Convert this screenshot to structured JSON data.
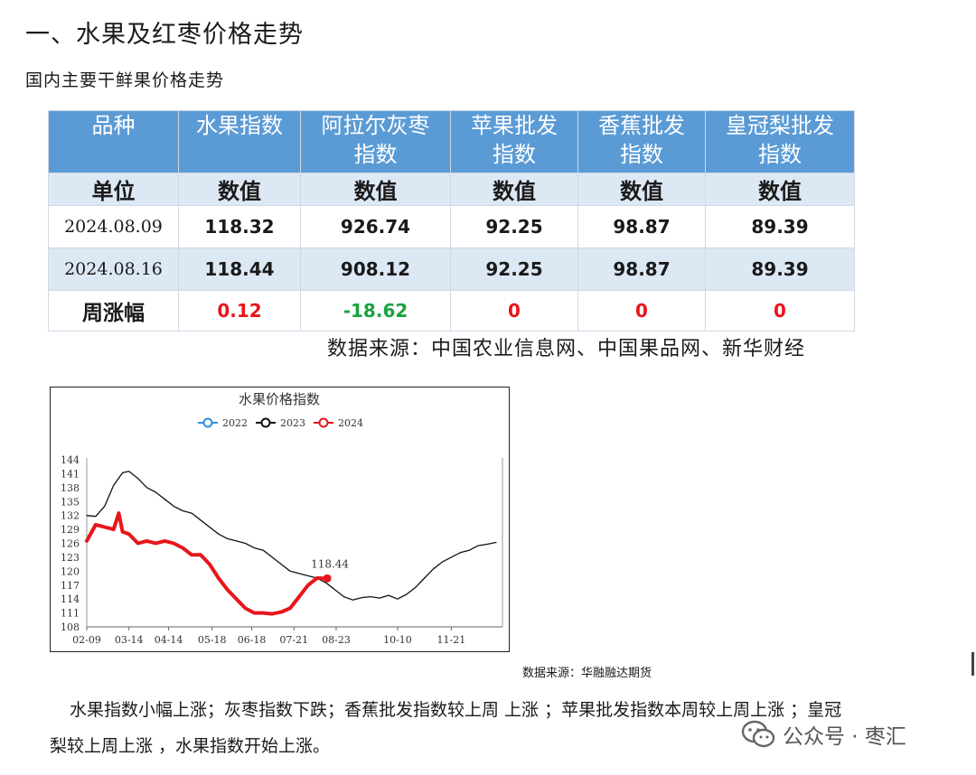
{
  "heading": "一、水果及红枣价格走势",
  "subheading": "国内主要干鲜果价格走势",
  "table": {
    "headers": [
      "品种",
      "水果指数",
      "阿拉尔灰枣指数",
      "苹果批发指数",
      "香蕉批发指数",
      "皇冠梨批发指数"
    ],
    "header_lines": [
      [
        "品种"
      ],
      [
        "水果指数"
      ],
      [
        "阿拉尔灰枣",
        "指数"
      ],
      [
        "苹果批发",
        "指数"
      ],
      [
        "香蕉批发",
        "指数"
      ],
      [
        "皇冠梨批发",
        "指数"
      ]
    ],
    "units": [
      "单位",
      "数值",
      "数值",
      "数值",
      "数值",
      "数值"
    ],
    "rows": [
      [
        "2024.08.09",
        "118.32",
        "926.74",
        "92.25",
        "98.87",
        "89.39"
      ],
      [
        "2024.08.16",
        "118.44",
        "908.12",
        "92.25",
        "98.87",
        "89.39"
      ]
    ],
    "change_label": "周涨幅",
    "changes": [
      "0.12",
      "-18.62",
      "0",
      "0",
      "0"
    ]
  },
  "source1": "数据来源：中国农业信息网、中国果品网、新华财经",
  "chart_data": {
    "type": "line",
    "title": "水果价格指数",
    "legend": [
      "2022",
      "2023",
      "2024"
    ],
    "legend_placement": "top-center",
    "x_ticks": [
      "02-09",
      "03-14",
      "04-14",
      "05-18",
      "06-18",
      "07-21",
      "08-23",
      "10-10",
      "11-21"
    ],
    "y_ticks": [
      108,
      111,
      114,
      117,
      120,
      123,
      126,
      129,
      132,
      135,
      138,
      141,
      144
    ],
    "ylim": [
      108,
      144
    ],
    "annotation": "118.44",
    "series": [
      {
        "name": "2023",
        "color": "#111111",
        "x": [
          "02-09",
          "02-16",
          "02-23",
          "03-02",
          "03-09",
          "03-14",
          "03-21",
          "03-28",
          "04-04",
          "04-11",
          "04-18",
          "04-25",
          "05-02",
          "05-09",
          "05-16",
          "05-23",
          "05-30",
          "06-06",
          "06-13",
          "06-20",
          "06-27",
          "07-04",
          "07-11",
          "07-18",
          "07-25",
          "08-01",
          "08-08",
          "08-15",
          "08-22",
          "08-29",
          "09-05",
          "09-12",
          "09-19",
          "09-26",
          "10-03",
          "10-10",
          "10-17",
          "10-24",
          "10-31",
          "11-07",
          "11-14",
          "11-21",
          "11-28",
          "12-05",
          "12-12",
          "12-19",
          "12-26"
        ],
        "y": [
          132.0,
          131.8,
          134.0,
          138.5,
          141.2,
          141.5,
          140.0,
          138.0,
          137.0,
          135.5,
          134.0,
          133.0,
          132.5,
          131.0,
          129.5,
          128.0,
          127.0,
          126.5,
          126.0,
          125.0,
          124.5,
          123.0,
          121.5,
          120.0,
          119.5,
          119.0,
          118.5,
          117.5,
          116.0,
          114.5,
          113.8,
          114.3,
          114.5,
          114.2,
          114.8,
          114.0,
          115.0,
          116.5,
          118.5,
          120.5,
          122.0,
          123.0,
          124.0,
          124.5,
          125.5,
          125.8,
          126.2
        ]
      },
      {
        "name": "2024",
        "color": "#e8151b",
        "x": [
          "02-09",
          "02-16",
          "02-23",
          "03-02",
          "03-06",
          "03-09",
          "03-14",
          "03-21",
          "03-28",
          "04-04",
          "04-11",
          "04-18",
          "04-25",
          "05-02",
          "05-09",
          "05-16",
          "05-23",
          "05-30",
          "06-06",
          "06-13",
          "06-20",
          "06-27",
          "07-04",
          "07-11",
          "07-18",
          "07-25",
          "08-01",
          "08-08",
          "08-16"
        ],
        "y": [
          126.5,
          130.0,
          129.5,
          129.0,
          132.5,
          128.5,
          128.0,
          126.0,
          126.5,
          126.0,
          126.5,
          126.0,
          125.0,
          123.5,
          123.5,
          121.5,
          118.5,
          116.0,
          114.0,
          112.0,
          111.0,
          111.0,
          110.8,
          111.2,
          112.0,
          114.5,
          117.0,
          118.5,
          118.44
        ]
      }
    ]
  },
  "source2": "数据来源：华融融达期货",
  "paragraph_line1": "水果指数小幅上涨；灰枣指数下跌；香蕉批发指数较上周 上涨 ；苹果批发指数本周较上周上涨 ；皇冠",
  "paragraph_line2": "梨较上周上涨 ，水果指数开始上涨。",
  "watermark": "公众号 · 枣汇"
}
